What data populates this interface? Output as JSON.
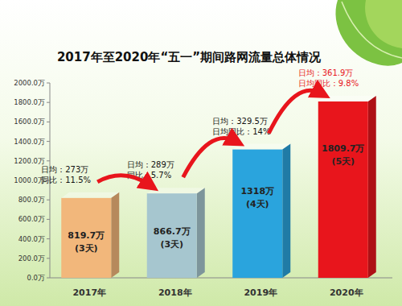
{
  "chart_data": {
    "type": "bar",
    "title": "2017年至2020年“五一”期间路网流量总体情况",
    "categories": [
      "2017年",
      "2018年",
      "2019年",
      "2020年"
    ],
    "values": [
      819.7,
      866.7,
      1318,
      1809.7
    ],
    "value_labels": [
      "819.7万",
      "866.7万",
      "1318万",
      "1809.7万"
    ],
    "durations": [
      "(3天)",
      "(3天)",
      "(4天)",
      "(5天)"
    ],
    "annotations": [
      {
        "lines": [
          "日均：273万",
          "同比：11.5%"
        ]
      },
      {
        "lines": [
          "日均：289万",
          "同比：5.7%"
        ]
      },
      {
        "lines": [
          "日均：329.5万",
          "日均同比：14%"
        ]
      },
      {
        "lines": [
          "日均：361.9万",
          "日均同比：9.8%"
        ]
      }
    ],
    "colors": [
      "#f2b77b",
      "#a6c6cf",
      "#2aa4dd",
      "#e8151c"
    ],
    "ylim": [
      0,
      2000
    ],
    "yticks": [
      {
        "value": 0,
        "label": "0.0万"
      },
      {
        "value": 200,
        "label": "200.0万"
      },
      {
        "value": 400,
        "label": "400.0万"
      },
      {
        "value": 600,
        "label": "600.0万"
      },
      {
        "value": 800,
        "label": "800.0万"
      },
      {
        "value": 1000,
        "label": "1000.0万"
      },
      {
        "value": 1200,
        "label": "1200.0万"
      },
      {
        "value": 1400,
        "label": "1400.0万"
      },
      {
        "value": 1600,
        "label": "1600.0万"
      },
      {
        "value": 1800,
        "label": "1800.0万"
      },
      {
        "value": 2000,
        "label": "2000.0万"
      }
    ],
    "grid": false,
    "data_labels": true
  }
}
